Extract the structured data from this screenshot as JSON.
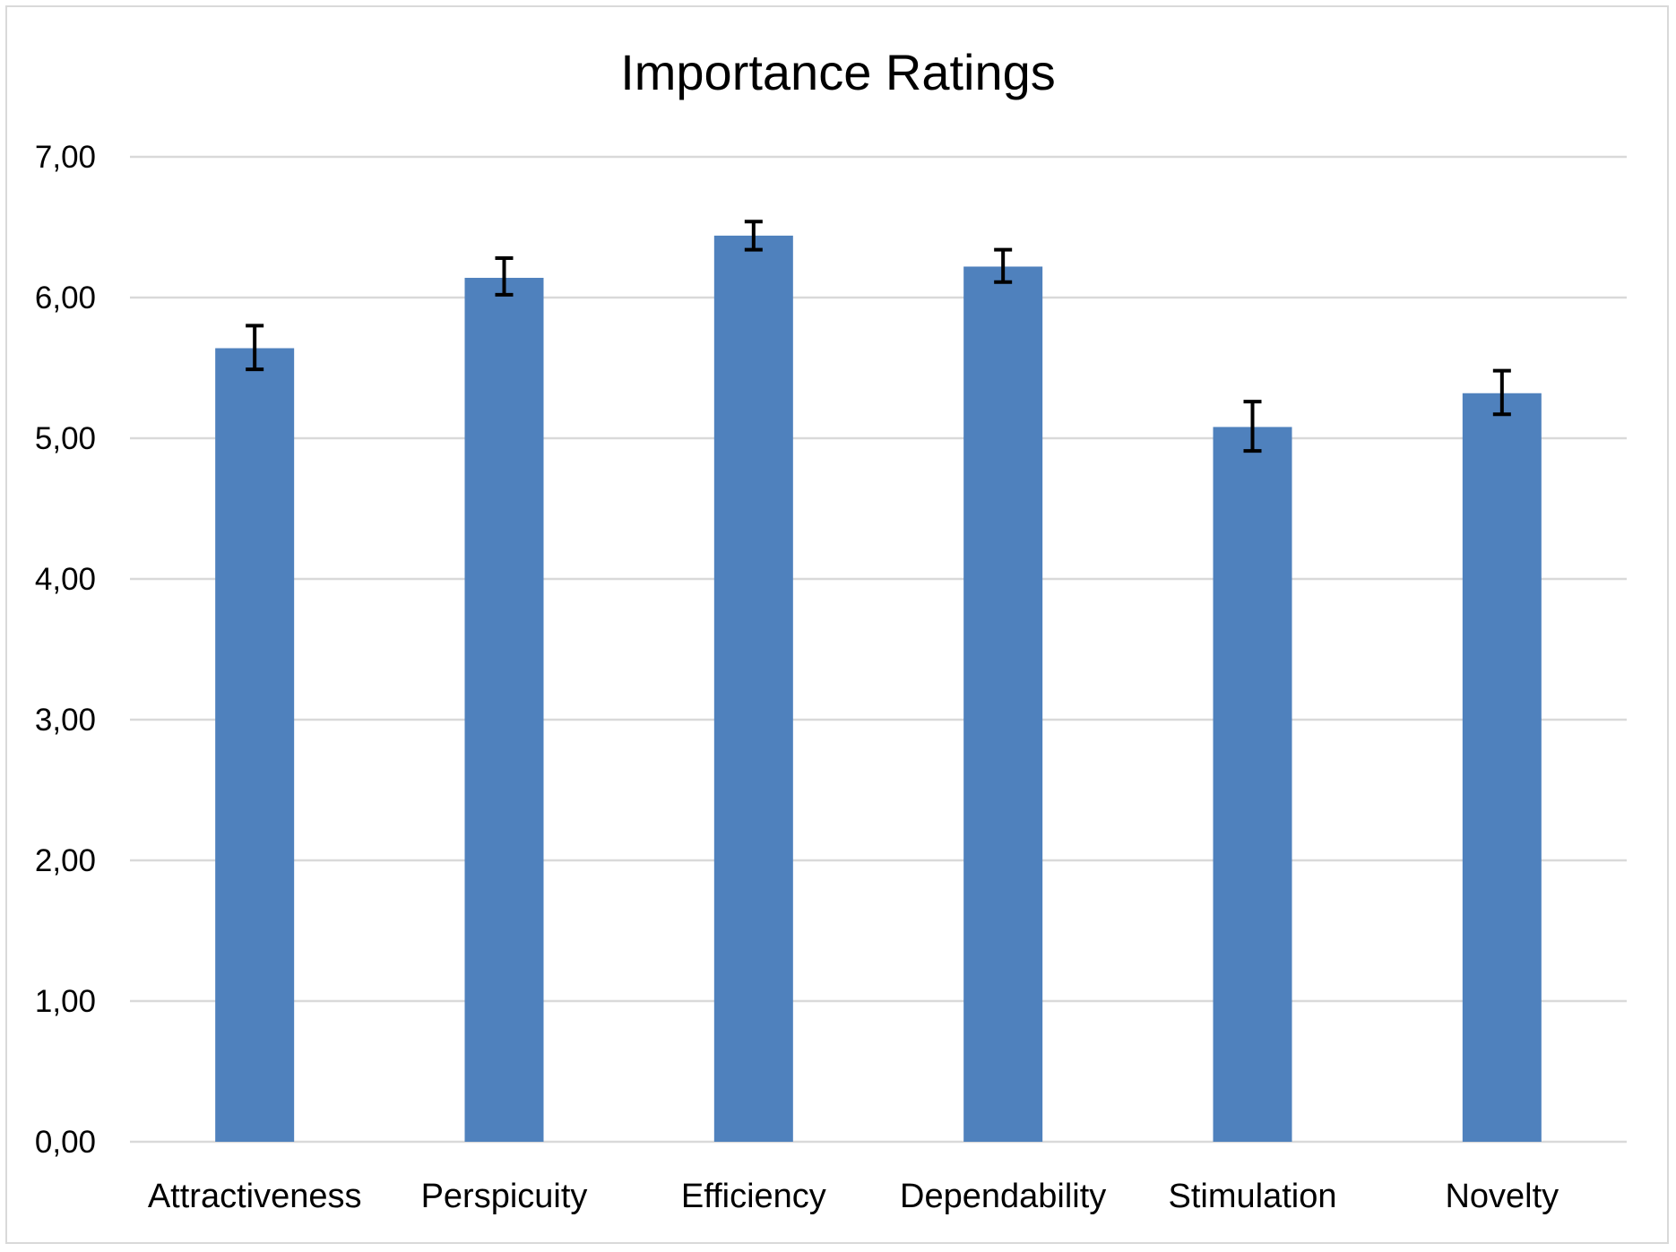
{
  "chart_data": {
    "type": "bar",
    "title": "Importance Ratings",
    "xlabel": "",
    "ylabel": "",
    "categories": [
      "Attractiveness",
      "Perspicuity",
      "Efficiency",
      "Dependability",
      "Stimulation",
      "Novelty"
    ],
    "values": [
      5.64,
      6.14,
      6.44,
      6.22,
      5.08,
      5.32
    ],
    "error_low": [
      5.49,
      6.02,
      6.34,
      6.11,
      4.91,
      5.17
    ],
    "error_high": [
      5.8,
      6.28,
      6.54,
      6.34,
      5.26,
      5.48
    ],
    "ylim": [
      0,
      7
    ],
    "yticks": [
      0,
      1,
      2,
      3,
      4,
      5,
      6,
      7
    ],
    "ytick_labels": [
      "0,00",
      "1,00",
      "2,00",
      "3,00",
      "4,00",
      "5,00",
      "6,00",
      "7,00"
    ],
    "grid": "horizontal",
    "legend": "none",
    "bar_color": "#4f81bd",
    "grid_color": "#d9d9d9",
    "errorbar_color": "#000000"
  }
}
